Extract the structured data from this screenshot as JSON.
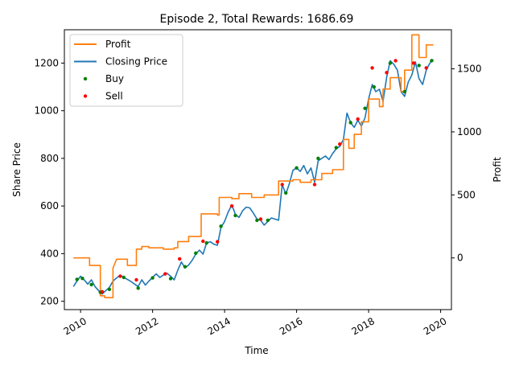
{
  "chart_data": {
    "type": "line",
    "title": "Episode 2, Total Rewards: 1686.69",
    "xlabel": "Time",
    "ylabel_left": "Share Price",
    "ylabel_right": "Profit",
    "x_ticks": [
      "2010",
      "2012",
      "2014",
      "2016",
      "2018",
      "2020"
    ],
    "x_range": [
      2009.55,
      2020.3
    ],
    "y_left_ticks": [
      200,
      400,
      600,
      800,
      1000,
      1200
    ],
    "y_left_range": [
      165,
      1340
    ],
    "y_right_ticks": [
      0,
      500,
      1000,
      1500
    ],
    "y_right_range": [
      -410,
      1810
    ],
    "legend_position": "top-left",
    "grid": false,
    "colors": {
      "profit": "#ff7f0e",
      "price": "#1f77b4",
      "buy": "#008000",
      "sell": "#ff0000"
    },
    "legend": [
      {
        "label": "Profit",
        "kind": "line",
        "color": "#ff7f0e"
      },
      {
        "label": "Closing Price",
        "kind": "line",
        "color": "#1f77b4"
      },
      {
        "label": "Buy",
        "kind": "dot",
        "color": "#008000"
      },
      {
        "label": "Sell",
        "kind": "dot",
        "color": "#ff0000"
      }
    ],
    "series": [
      {
        "name": "Closing Price",
        "axis": "left",
        "points": [
          [
            2009.8,
            262
          ],
          [
            2009.9,
            285
          ],
          [
            2010.0,
            305
          ],
          [
            2010.1,
            290
          ],
          [
            2010.2,
            272
          ],
          [
            2010.3,
            290
          ],
          [
            2010.4,
            262
          ],
          [
            2010.5,
            245
          ],
          [
            2010.6,
            230
          ],
          [
            2010.7,
            245
          ],
          [
            2010.8,
            258
          ],
          [
            2010.9,
            285
          ],
          [
            2011.0,
            298
          ],
          [
            2011.1,
            310
          ],
          [
            2011.2,
            300
          ],
          [
            2011.3,
            292
          ],
          [
            2011.4,
            283
          ],
          [
            2011.5,
            272
          ],
          [
            2011.6,
            262
          ],
          [
            2011.7,
            290
          ],
          [
            2011.8,
            268
          ],
          [
            2011.9,
            285
          ],
          [
            2012.0,
            300
          ],
          [
            2012.1,
            315
          ],
          [
            2012.2,
            300
          ],
          [
            2012.3,
            310
          ],
          [
            2012.4,
            318
          ],
          [
            2012.5,
            305
          ],
          [
            2012.6,
            290
          ],
          [
            2012.7,
            330
          ],
          [
            2012.8,
            365
          ],
          [
            2012.9,
            340
          ],
          [
            2013.0,
            352
          ],
          [
            2013.1,
            372
          ],
          [
            2013.2,
            398
          ],
          [
            2013.3,
            415
          ],
          [
            2013.4,
            398
          ],
          [
            2013.5,
            445
          ],
          [
            2013.6,
            450
          ],
          [
            2013.7,
            440
          ],
          [
            2013.8,
            435
          ],
          [
            2013.9,
            510
          ],
          [
            2014.0,
            535
          ],
          [
            2014.1,
            575
          ],
          [
            2014.2,
            605
          ],
          [
            2014.3,
            565
          ],
          [
            2014.4,
            552
          ],
          [
            2014.5,
            580
          ],
          [
            2014.6,
            595
          ],
          [
            2014.7,
            592
          ],
          [
            2014.8,
            570
          ],
          [
            2014.9,
            545
          ],
          [
            2015.0,
            540
          ],
          [
            2015.1,
            520
          ],
          [
            2015.2,
            535
          ],
          [
            2015.3,
            550
          ],
          [
            2015.4,
            545
          ],
          [
            2015.5,
            540
          ],
          [
            2015.6,
            690
          ],
          [
            2015.7,
            650
          ],
          [
            2015.8,
            695
          ],
          [
            2015.9,
            750
          ],
          [
            2016.0,
            760
          ],
          [
            2016.1,
            745
          ],
          [
            2016.2,
            770
          ],
          [
            2016.3,
            735
          ],
          [
            2016.4,
            760
          ],
          [
            2016.5,
            700
          ],
          [
            2016.6,
            790
          ],
          [
            2016.7,
            800
          ],
          [
            2016.8,
            810
          ],
          [
            2016.9,
            795
          ],
          [
            2017.0,
            820
          ],
          [
            2017.1,
            840
          ],
          [
            2017.2,
            850
          ],
          [
            2017.3,
            880
          ],
          [
            2017.4,
            990
          ],
          [
            2017.5,
            950
          ],
          [
            2017.6,
            930
          ],
          [
            2017.7,
            960
          ],
          [
            2017.8,
            935
          ],
          [
            2017.9,
            970
          ],
          [
            2018.0,
            1050
          ],
          [
            2018.1,
            1110
          ],
          [
            2018.2,
            1080
          ],
          [
            2018.3,
            1090
          ],
          [
            2018.4,
            1040
          ],
          [
            2018.5,
            1140
          ],
          [
            2018.6,
            1210
          ],
          [
            2018.7,
            1195
          ],
          [
            2018.8,
            1170
          ],
          [
            2018.9,
            1080
          ],
          [
            2019.0,
            1060
          ],
          [
            2019.1,
            1120
          ],
          [
            2019.2,
            1150
          ],
          [
            2019.3,
            1205
          ],
          [
            2019.4,
            1135
          ],
          [
            2019.5,
            1110
          ],
          [
            2019.6,
            1170
          ],
          [
            2019.7,
            1200
          ],
          [
            2019.8,
            1215
          ]
        ]
      },
      {
        "name": "Profit",
        "axis": "right",
        "points": [
          [
            2009.8,
            0
          ],
          [
            2010.25,
            0
          ],
          [
            2010.25,
            -60
          ],
          [
            2010.55,
            -60
          ],
          [
            2010.55,
            -300
          ],
          [
            2010.67,
            -300
          ],
          [
            2010.67,
            -315
          ],
          [
            2010.9,
            -315
          ],
          [
            2010.9,
            -80
          ],
          [
            2011.0,
            -10
          ],
          [
            2011.3,
            -10
          ],
          [
            2011.3,
            -60
          ],
          [
            2011.55,
            -60
          ],
          [
            2011.55,
            70
          ],
          [
            2011.7,
            70
          ],
          [
            2011.7,
            90
          ],
          [
            2011.9,
            90
          ],
          [
            2011.9,
            80
          ],
          [
            2012.3,
            80
          ],
          [
            2012.3,
            70
          ],
          [
            2012.6,
            70
          ],
          [
            2012.6,
            80
          ],
          [
            2012.7,
            80
          ],
          [
            2012.7,
            130
          ],
          [
            2013.0,
            130
          ],
          [
            2013.0,
            170
          ],
          [
            2013.35,
            170
          ],
          [
            2013.35,
            350
          ],
          [
            2013.8,
            350
          ],
          [
            2013.8,
            340
          ],
          [
            2013.85,
            340
          ],
          [
            2013.85,
            480
          ],
          [
            2014.2,
            480
          ],
          [
            2014.2,
            470
          ],
          [
            2014.4,
            470
          ],
          [
            2014.4,
            510
          ],
          [
            2014.75,
            510
          ],
          [
            2014.75,
            480
          ],
          [
            2015.1,
            480
          ],
          [
            2015.1,
            500
          ],
          [
            2015.5,
            500
          ],
          [
            2015.5,
            610
          ],
          [
            2015.9,
            610
          ],
          [
            2015.9,
            620
          ],
          [
            2016.1,
            620
          ],
          [
            2016.1,
            600
          ],
          [
            2016.4,
            600
          ],
          [
            2016.4,
            620
          ],
          [
            2016.7,
            620
          ],
          [
            2016.7,
            670
          ],
          [
            2017.0,
            670
          ],
          [
            2017.0,
            700
          ],
          [
            2017.3,
            700
          ],
          [
            2017.3,
            940
          ],
          [
            2017.45,
            940
          ],
          [
            2017.45,
            870
          ],
          [
            2017.6,
            870
          ],
          [
            2017.6,
            980
          ],
          [
            2017.8,
            980
          ],
          [
            2017.8,
            1080
          ],
          [
            2018.0,
            1080
          ],
          [
            2018.0,
            1260
          ],
          [
            2018.3,
            1260
          ],
          [
            2018.3,
            1200
          ],
          [
            2018.4,
            1200
          ],
          [
            2018.4,
            1340
          ],
          [
            2018.6,
            1340
          ],
          [
            2018.6,
            1430
          ],
          [
            2018.9,
            1430
          ],
          [
            2018.9,
            1320
          ],
          [
            2019.0,
            1320
          ],
          [
            2019.0,
            1490
          ],
          [
            2019.2,
            1490
          ],
          [
            2019.2,
            1770
          ],
          [
            2019.4,
            1770
          ],
          [
            2019.4,
            1590
          ],
          [
            2019.6,
            1590
          ],
          [
            2019.6,
            1690
          ],
          [
            2019.8,
            1690
          ]
        ]
      },
      {
        "name": "Buy",
        "axis": "left",
        "points": [
          [
            2009.9,
            292
          ],
          [
            2010.05,
            296
          ],
          [
            2010.3,
            270
          ],
          [
            2010.55,
            238
          ],
          [
            2010.8,
            250
          ],
          [
            2011.2,
            300
          ],
          [
            2011.6,
            255
          ],
          [
            2012.0,
            298
          ],
          [
            2012.5,
            295
          ],
          [
            2012.9,
            345
          ],
          [
            2013.2,
            402
          ],
          [
            2013.5,
            445
          ],
          [
            2013.9,
            515
          ],
          [
            2014.3,
            560
          ],
          [
            2014.9,
            540
          ],
          [
            2015.2,
            540
          ],
          [
            2015.7,
            655
          ],
          [
            2016.0,
            760
          ],
          [
            2016.6,
            800
          ],
          [
            2017.1,
            845
          ],
          [
            2017.5,
            950
          ],
          [
            2017.9,
            1010
          ],
          [
            2018.15,
            1100
          ],
          [
            2018.6,
            1200
          ],
          [
            2019.0,
            1080
          ],
          [
            2019.4,
            1190
          ],
          [
            2019.75,
            1210
          ]
        ]
      },
      {
        "name": "Sell",
        "axis": "left",
        "points": [
          [
            2010.6,
            240
          ],
          [
            2011.1,
            305
          ],
          [
            2011.55,
            290
          ],
          [
            2012.35,
            315
          ],
          [
            2012.75,
            378
          ],
          [
            2013.4,
            452
          ],
          [
            2013.8,
            450
          ],
          [
            2014.2,
            600
          ],
          [
            2015.0,
            545
          ],
          [
            2015.6,
            690
          ],
          [
            2016.5,
            690
          ],
          [
            2017.2,
            860
          ],
          [
            2017.7,
            965
          ],
          [
            2018.1,
            1180
          ],
          [
            2018.5,
            1160
          ],
          [
            2018.75,
            1210
          ],
          [
            2019.25,
            1200
          ],
          [
            2019.6,
            1180
          ]
        ]
      }
    ]
  }
}
